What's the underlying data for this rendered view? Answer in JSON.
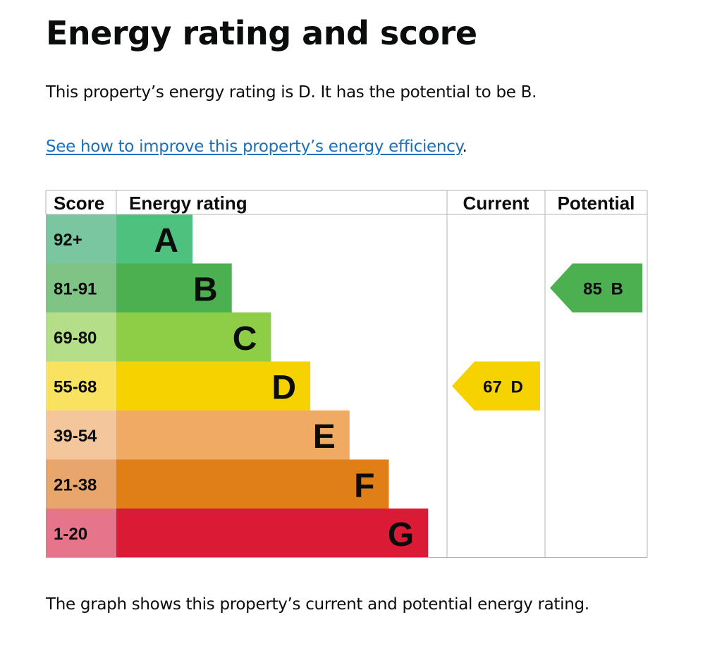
{
  "page": {
    "heading": "Energy rating and score",
    "intro": "This property’s energy rating is D. It has the potential to be B.",
    "link_text": "See how to improve this property’s energy efficiency",
    "link_suffix": ".",
    "footer_text": "The graph shows this property’s current and potential energy rating."
  },
  "chart_data": {
    "type": "bar",
    "headers": {
      "score": "Score",
      "rating": "Energy rating",
      "current": "Current",
      "potential": "Potential"
    },
    "bands": [
      {
        "score_range": "92+",
        "letter": "A",
        "color": "#4fc17f",
        "score_bg": "#7ac6a0"
      },
      {
        "score_range": "81-91",
        "letter": "B",
        "color": "#4caf50",
        "score_bg": "#7fc485"
      },
      {
        "score_range": "69-80",
        "letter": "C",
        "color": "#8dce46",
        "score_bg": "#b5de88"
      },
      {
        "score_range": "55-68",
        "letter": "D",
        "color": "#f6d200",
        "score_bg": "#f8e25f"
      },
      {
        "score_range": "39-54",
        "letter": "E",
        "color": "#f0aa64",
        "score_bg": "#f4c69c"
      },
      {
        "score_range": "21-38",
        "letter": "F",
        "color": "#e07f18",
        "score_bg": "#e8a66c"
      },
      {
        "score_range": "1-20",
        "letter": "G",
        "color": "#db1a36",
        "score_bg": "#e6748a"
      }
    ],
    "current": {
      "score": 67,
      "letter": "D",
      "label": "67 D",
      "color": "#f6d200"
    },
    "potential": {
      "score": 85,
      "letter": "B",
      "label": "85 B",
      "color": "#4caf50"
    }
  }
}
